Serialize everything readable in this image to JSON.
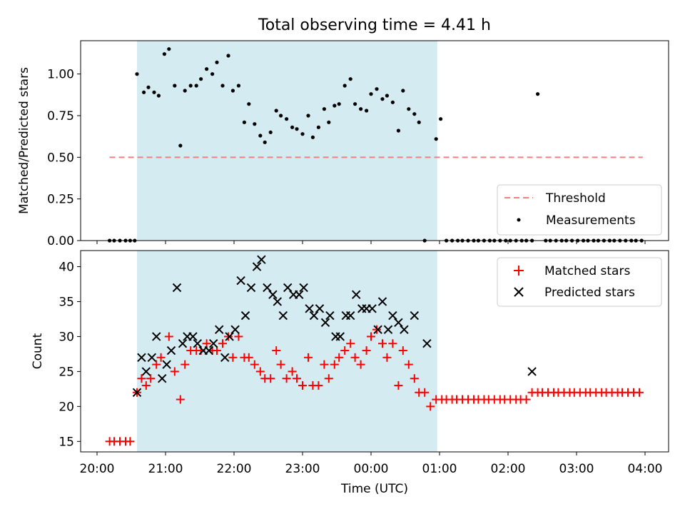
{
  "title": "Total observing time = 4.41 h",
  "chart_data": [
    {
      "panel": "top",
      "type": "scatter",
      "ylabel": "Matched/Predicted stars",
      "ylim": [
        0,
        1.2
      ],
      "y_ticks": [
        "0.00",
        "0.25",
        "0.50",
        "0.75",
        "1.00"
      ],
      "x_range": [
        "20:00",
        "04:00"
      ],
      "x_tick_labels_visible": false,
      "observing_window": {
        "start": "20:35",
        "end": "00:58",
        "color": "#add8e6"
      },
      "threshold": {
        "label": "Threshold",
        "value": 0.5,
        "x_start": "20:11",
        "x_end": "03:58",
        "color": "#f08080",
        "style": "dashed"
      },
      "legend": {
        "position": "lower right",
        "entries": [
          "Threshold",
          "Measurements"
        ]
      },
      "measurements": {
        "label": "Measurements",
        "color": "#000000",
        "points": [
          [
            "20:11",
            0
          ],
          [
            "20:15",
            0
          ],
          [
            "20:20",
            0
          ],
          [
            "20:25",
            0
          ],
          [
            "20:29",
            0
          ],
          [
            "20:33",
            0
          ],
          [
            "20:35",
            1.0
          ],
          [
            "20:41",
            0.89
          ],
          [
            "20:45",
            0.92
          ],
          [
            "20:50",
            0.89
          ],
          [
            "20:54",
            0.87
          ],
          [
            "20:59",
            1.12
          ],
          [
            "21:03",
            1.15
          ],
          [
            "21:08",
            0.93
          ],
          [
            "21:13",
            0.57
          ],
          [
            "21:17",
            0.9
          ],
          [
            "21:22",
            0.93
          ],
          [
            "21:27",
            0.93
          ],
          [
            "21:31",
            0.97
          ],
          [
            "21:36",
            1.03
          ],
          [
            "21:41",
            1.0
          ],
          [
            "21:45",
            1.07
          ],
          [
            "21:50",
            0.93
          ],
          [
            "21:55",
            1.11
          ],
          [
            "21:59",
            0.9
          ],
          [
            "22:04",
            0.93
          ],
          [
            "22:09",
            0.71
          ],
          [
            "22:13",
            0.82
          ],
          [
            "22:18",
            0.7
          ],
          [
            "22:23",
            0.63
          ],
          [
            "22:27",
            0.59
          ],
          [
            "22:32",
            0.65
          ],
          [
            "22:37",
            0.78
          ],
          [
            "22:41",
            0.75
          ],
          [
            "22:46",
            0.73
          ],
          [
            "22:51",
            0.68
          ],
          [
            "22:55",
            0.67
          ],
          [
            "23:00",
            0.64
          ],
          [
            "23:05",
            0.75
          ],
          [
            "23:09",
            0.62
          ],
          [
            "23:14",
            0.68
          ],
          [
            "23:19",
            0.79
          ],
          [
            "23:23",
            0.71
          ],
          [
            "23:28",
            0.81
          ],
          [
            "23:32",
            0.82
          ],
          [
            "23:37",
            0.93
          ],
          [
            "23:42",
            0.97
          ],
          [
            "23:46",
            0.82
          ],
          [
            "23:51",
            0.79
          ],
          [
            "23:56",
            0.78
          ],
          [
            "00:00",
            0.88
          ],
          [
            "00:05",
            0.91
          ],
          [
            "00:10",
            0.85
          ],
          [
            "00:14",
            0.87
          ],
          [
            "00:19",
            0.83
          ],
          [
            "00:24",
            0.66
          ],
          [
            "00:28",
            0.9
          ],
          [
            "00:33",
            0.79
          ],
          [
            "00:38",
            0.76
          ],
          [
            "00:42",
            0.71
          ],
          [
            "00:47",
            0
          ],
          [
            "00:57",
            0.61
          ],
          [
            "01:01",
            0.73
          ],
          [
            "01:06",
            0
          ],
          [
            "01:11",
            0
          ],
          [
            "01:16",
            0
          ],
          [
            "01:20",
            0
          ],
          [
            "01:25",
            0
          ],
          [
            "01:30",
            0
          ],
          [
            "01:34",
            0
          ],
          [
            "01:39",
            0
          ],
          [
            "01:44",
            0
          ],
          [
            "01:48",
            0
          ],
          [
            "01:53",
            0
          ],
          [
            "01:58",
            0
          ],
          [
            "02:02",
            0
          ],
          [
            "02:07",
            0
          ],
          [
            "02:12",
            0
          ],
          [
            "02:16",
            0
          ],
          [
            "02:21",
            0
          ],
          [
            "02:26",
            0.88
          ],
          [
            "02:33",
            0
          ],
          [
            "02:37",
            0
          ],
          [
            "02:42",
            0
          ],
          [
            "02:47",
            0
          ],
          [
            "02:51",
            0
          ],
          [
            "02:56",
            0
          ],
          [
            "03:01",
            0
          ],
          [
            "03:06",
            0
          ],
          [
            "03:10",
            0
          ],
          [
            "03:15",
            0
          ],
          [
            "03:19",
            0
          ],
          [
            "03:24",
            0
          ],
          [
            "03:29",
            0
          ],
          [
            "03:33",
            0
          ],
          [
            "03:38",
            0
          ],
          [
            "03:43",
            0
          ],
          [
            "03:48",
            0
          ],
          [
            "03:52",
            0
          ],
          [
            "03:57",
            0
          ]
        ]
      }
    },
    {
      "panel": "bottom",
      "type": "scatter",
      "xlabel": "Time (UTC)",
      "ylabel": "Count",
      "ylim": [
        13.5,
        42.3
      ],
      "y_ticks": [
        "15",
        "20",
        "25",
        "30",
        "35",
        "40"
      ],
      "x_ticks": [
        "20:00",
        "21:00",
        "22:00",
        "23:00",
        "00:00",
        "01:00",
        "02:00",
        "03:00",
        "04:00"
      ],
      "observing_window": {
        "start": "20:35",
        "end": "00:58",
        "color": "#add8e6"
      },
      "legend": {
        "position": "upper right",
        "entries": [
          "Matched stars",
          "Predicted stars"
        ]
      },
      "series": [
        {
          "name": "Matched stars",
          "marker": "+",
          "color": "#ff0000",
          "points": [
            [
              "20:11",
              15
            ],
            [
              "20:15",
              15
            ],
            [
              "20:20",
              15
            ],
            [
              "20:25",
              15
            ],
            [
              "20:29",
              15
            ],
            [
              "20:35",
              22
            ],
            [
              "20:39",
              24
            ],
            [
              "20:43",
              23
            ],
            [
              "20:47",
              24
            ],
            [
              "20:52",
              26
            ],
            [
              "20:56",
              27
            ],
            [
              "21:03",
              30
            ],
            [
              "21:08",
              25
            ],
            [
              "21:13",
              21
            ],
            [
              "21:17",
              26
            ],
            [
              "21:22",
              28
            ],
            [
              "21:27",
              28
            ],
            [
              "21:31",
              28
            ],
            [
              "21:36",
              29
            ],
            [
              "21:41",
              28
            ],
            [
              "21:45",
              28
            ],
            [
              "21:50",
              29
            ],
            [
              "21:55",
              30
            ],
            [
              "21:59",
              27
            ],
            [
              "22:04",
              30
            ],
            [
              "22:09",
              27
            ],
            [
              "22:13",
              27
            ],
            [
              "22:18",
              26
            ],
            [
              "22:23",
              25
            ],
            [
              "22:27",
              24
            ],
            [
              "22:32",
              24
            ],
            [
              "22:37",
              28
            ],
            [
              "22:41",
              26
            ],
            [
              "22:46",
              24
            ],
            [
              "22:51",
              25
            ],
            [
              "22:55",
              24
            ],
            [
              "23:00",
              23
            ],
            [
              "23:05",
              27
            ],
            [
              "23:09",
              23
            ],
            [
              "23:14",
              23
            ],
            [
              "23:19",
              26
            ],
            [
              "23:23",
              24
            ],
            [
              "23:28",
              26
            ],
            [
              "23:32",
              27
            ],
            [
              "23:37",
              28
            ],
            [
              "23:42",
              29
            ],
            [
              "23:46",
              27
            ],
            [
              "23:51",
              26
            ],
            [
              "23:56",
              28
            ],
            [
              "00:00",
              30
            ],
            [
              "00:05",
              31
            ],
            [
              "00:10",
              29
            ],
            [
              "00:14",
              27
            ],
            [
              "00:19",
              29
            ],
            [
              "00:24",
              23
            ],
            [
              "00:28",
              28
            ],
            [
              "00:33",
              26
            ],
            [
              "00:38",
              24
            ],
            [
              "00:42",
              22
            ],
            [
              "00:47",
              22
            ],
            [
              "00:52",
              20
            ],
            [
              "00:57",
              21
            ],
            [
              "01:02",
              21
            ],
            [
              "01:06",
              21
            ],
            [
              "01:11",
              21
            ],
            [
              "01:15",
              21
            ],
            [
              "01:20",
              21
            ],
            [
              "01:25",
              21
            ],
            [
              "01:30",
              21
            ],
            [
              "01:34",
              21
            ],
            [
              "01:39",
              21
            ],
            [
              "01:43",
              21
            ],
            [
              "01:48",
              21
            ],
            [
              "01:53",
              21
            ],
            [
              "01:57",
              21
            ],
            [
              "02:02",
              21
            ],
            [
              "02:07",
              21
            ],
            [
              "02:11",
              21
            ],
            [
              "02:16",
              21
            ],
            [
              "02:21",
              22
            ],
            [
              "02:26",
              22
            ],
            [
              "02:30",
              22
            ],
            [
              "02:35",
              22
            ],
            [
              "02:40",
              22
            ],
            [
              "02:44",
              22
            ],
            [
              "02:49",
              22
            ],
            [
              "02:54",
              22
            ],
            [
              "02:58",
              22
            ],
            [
              "03:03",
              22
            ],
            [
              "03:08",
              22
            ],
            [
              "03:12",
              22
            ],
            [
              "03:17",
              22
            ],
            [
              "03:22",
              22
            ],
            [
              "03:26",
              22
            ],
            [
              "03:31",
              22
            ],
            [
              "03:36",
              22
            ],
            [
              "03:40",
              22
            ],
            [
              "03:45",
              22
            ],
            [
              "03:50",
              22
            ],
            [
              "03:55",
              22
            ]
          ]
        },
        {
          "name": "Predicted stars",
          "marker": "x",
          "color": "#000000",
          "points": [
            [
              "20:35",
              22
            ],
            [
              "20:39",
              27
            ],
            [
              "20:43",
              25
            ],
            [
              "20:48",
              27
            ],
            [
              "20:52",
              30
            ],
            [
              "20:57",
              24
            ],
            [
              "21:01",
              26
            ],
            [
              "21:05",
              28
            ],
            [
              "21:10",
              37
            ],
            [
              "21:15",
              29
            ],
            [
              "21:19",
              30
            ],
            [
              "21:24",
              30
            ],
            [
              "21:28",
              29
            ],
            [
              "21:33",
              28
            ],
            [
              "21:38",
              28
            ],
            [
              "21:42",
              29
            ],
            [
              "21:47",
              31
            ],
            [
              "21:52",
              27
            ],
            [
              "21:56",
              30
            ],
            [
              "22:01",
              31
            ],
            [
              "22:06",
              38
            ],
            [
              "22:10",
              33
            ],
            [
              "22:15",
              37
            ],
            [
              "22:20",
              40
            ],
            [
              "22:24",
              41
            ],
            [
              "22:29",
              37
            ],
            [
              "22:34",
              36
            ],
            [
              "22:38",
              35
            ],
            [
              "22:43",
              33
            ],
            [
              "22:47",
              37
            ],
            [
              "22:52",
              36
            ],
            [
              "22:57",
              36
            ],
            [
              "23:01",
              37
            ],
            [
              "23:06",
              34
            ],
            [
              "23:10",
              33
            ],
            [
              "23:15",
              34
            ],
            [
              "23:20",
              32
            ],
            [
              "23:24",
              33
            ],
            [
              "23:29",
              30
            ],
            [
              "23:33",
              30
            ],
            [
              "23:38",
              33
            ],
            [
              "23:42",
              33
            ],
            [
              "23:47",
              36
            ],
            [
              "23:52",
              34
            ],
            [
              "23:56",
              34
            ],
            [
              "00:01",
              34
            ],
            [
              "00:06",
              31
            ],
            [
              "00:10",
              35
            ],
            [
              "00:15",
              31
            ],
            [
              "00:19",
              33
            ],
            [
              "00:24",
              32
            ],
            [
              "00:29",
              31
            ],
            [
              "00:38",
              33
            ],
            [
              "00:49",
              29
            ],
            [
              "02:21",
              25
            ]
          ]
        }
      ]
    }
  ]
}
